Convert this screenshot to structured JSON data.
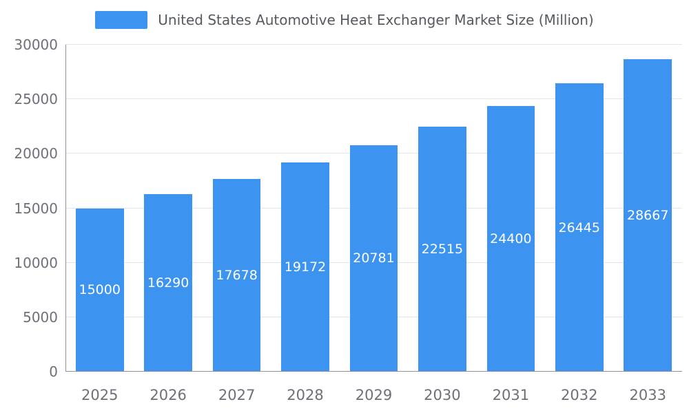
{
  "chart_data": {
    "type": "bar",
    "title": "United States Automotive Heat Exchanger Market Size (Million)",
    "categories": [
      "2025",
      "2026",
      "2027",
      "2028",
      "2029",
      "2030",
      "2031",
      "2032",
      "2033"
    ],
    "values": [
      15000,
      16290,
      17678,
      19172,
      20781,
      22515,
      24400,
      26445,
      28667
    ],
    "xlabel": "",
    "ylabel": "",
    "ylim": [
      0,
      30000
    ],
    "yticks": [
      0,
      5000,
      10000,
      15000,
      20000,
      25000,
      30000
    ],
    "grid": true,
    "legend_position": "top",
    "bar_color": "#3D94F0",
    "value_label_color": "#ffffff",
    "axis_label_color": "#6E7079"
  }
}
